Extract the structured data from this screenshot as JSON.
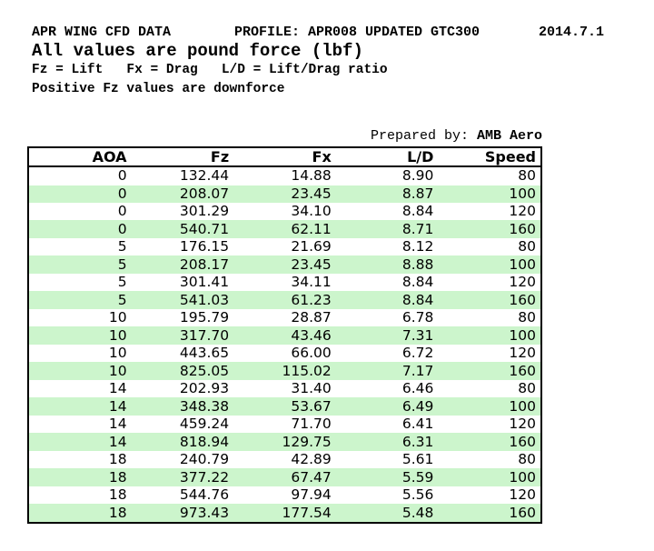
{
  "header": {
    "title": "APR WING CFD DATA",
    "profile": "PROFILE: APR008 UPDATED GTC300",
    "date": "2014.7.1",
    "units_note": "All values are pound force (lbf)",
    "legend": "Fz = Lift   Fx = Drag   L/D = Lift/Drag ratio",
    "downforce_note": "Positive Fz values are downforce"
  },
  "prepared_by": {
    "label": "Prepared by: ",
    "value": "AMB Aero"
  },
  "table": {
    "columns": [
      "AOA",
      "Fz",
      "Fx",
      "L/D",
      "Speed"
    ],
    "rows": [
      [
        "0",
        "132.44",
        "14.88",
        "8.90",
        "80"
      ],
      [
        "0",
        "208.07",
        "23.45",
        "8.87",
        "100"
      ],
      [
        "0",
        "301.29",
        "34.10",
        "8.84",
        "120"
      ],
      [
        "0",
        "540.71",
        "62.11",
        "8.71",
        "160"
      ],
      [
        "5",
        "176.15",
        "21.69",
        "8.12",
        "80"
      ],
      [
        "5",
        "208.17",
        "23.45",
        "8.88",
        "100"
      ],
      [
        "5",
        "301.41",
        "34.11",
        "8.84",
        "120"
      ],
      [
        "5",
        "541.03",
        "61.23",
        "8.84",
        "160"
      ],
      [
        "10",
        "195.79",
        "28.87",
        "6.78",
        "80"
      ],
      [
        "10",
        "317.70",
        "43.46",
        "7.31",
        "100"
      ],
      [
        "10",
        "443.65",
        "66.00",
        "6.72",
        "120"
      ],
      [
        "10",
        "825.05",
        "115.02",
        "7.17",
        "160"
      ],
      [
        "14",
        "202.93",
        "31.40",
        "6.46",
        "80"
      ],
      [
        "14",
        "348.38",
        "53.67",
        "6.49",
        "100"
      ],
      [
        "14",
        "459.24",
        "71.70",
        "6.41",
        "120"
      ],
      [
        "14",
        "818.94",
        "129.75",
        "6.31",
        "160"
      ],
      [
        "18",
        "240.79",
        "42.89",
        "5.61",
        "80"
      ],
      [
        "18",
        "377.22",
        "67.47",
        "5.59",
        "100"
      ],
      [
        "18",
        "544.76",
        "97.94",
        "5.56",
        "120"
      ],
      [
        "18",
        "973.43",
        "177.54",
        "5.48",
        "160"
      ]
    ]
  },
  "colors": {
    "row_alt_green": "#ccf5cc",
    "border": "#000000",
    "text": "#000000",
    "background": "#ffffff"
  }
}
